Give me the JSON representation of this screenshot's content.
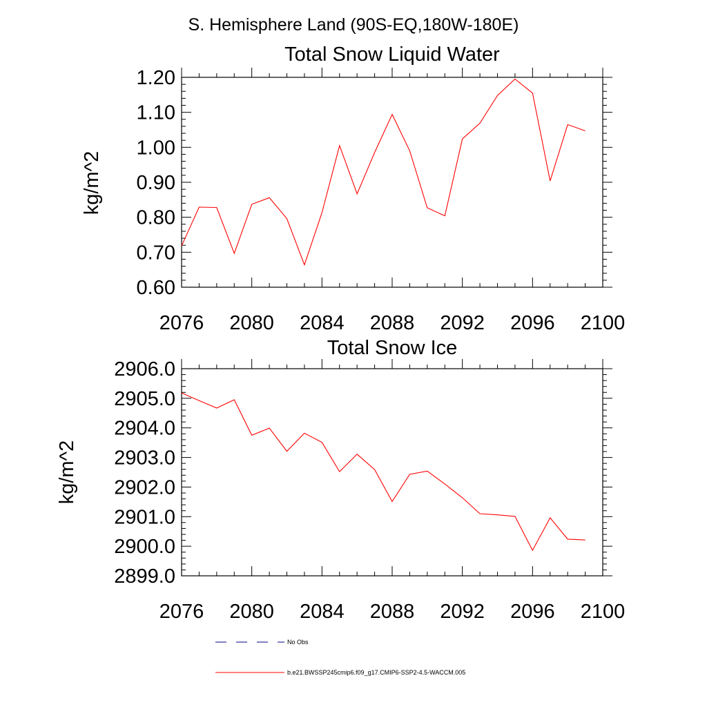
{
  "page_title": "S. Hemisphere Land (90S-EQ,180W-180E)",
  "chart_data": [
    {
      "type": "line",
      "title": "Total Snow Liquid Water",
      "xlabel": "",
      "ylabel": "kg/m^2",
      "xlim": [
        2076,
        2100
      ],
      "ylim": [
        0.6,
        1.2
      ],
      "x_ticks": [
        "2076",
        "2080",
        "2084",
        "2088",
        "2092",
        "2096",
        "2100"
      ],
      "y_ticks": [
        "0.60",
        "0.70",
        "0.80",
        "0.90",
        "1.00",
        "1.10",
        "1.20"
      ],
      "grid": false,
      "x": [
        2076,
        2077,
        2078,
        2079,
        2080,
        2081,
        2082,
        2083,
        2084,
        2085,
        2086,
        2087,
        2088,
        2089,
        2090,
        2091,
        2092,
        2093,
        2094,
        2095,
        2096,
        2097,
        2098,
        2099
      ],
      "series": [
        {
          "name": "b.e21.BWSSP245cmip6.f09_g17.CMIP6-SSP2-4.5-WACCM.005",
          "color": "#ff0000",
          "values": [
            0.718,
            0.829,
            0.828,
            0.697,
            0.837,
            0.856,
            0.796,
            0.664,
            0.813,
            1.005,
            0.867,
            0.985,
            1.094,
            0.99,
            0.827,
            0.804,
            1.024,
            1.069,
            1.148,
            1.195,
            1.155,
            0.904,
            1.065,
            1.047
          ]
        }
      ]
    },
    {
      "type": "line",
      "title": "Total Snow Ice",
      "xlabel": "",
      "ylabel": "kg/m^2",
      "xlim": [
        2076,
        2100
      ],
      "ylim": [
        2899.0,
        2906.0
      ],
      "x_ticks": [
        "2076",
        "2080",
        "2084",
        "2088",
        "2092",
        "2096",
        "2100"
      ],
      "y_ticks": [
        "2899.0",
        "2900.0",
        "2901.0",
        "2902.0",
        "2903.0",
        "2904.0",
        "2905.0",
        "2906.0"
      ],
      "grid": false,
      "x": [
        2076,
        2077,
        2078,
        2079,
        2080,
        2081,
        2082,
        2083,
        2084,
        2085,
        2086,
        2087,
        2088,
        2089,
        2090,
        2091,
        2092,
        2093,
        2094,
        2095,
        2096,
        2097,
        2098,
        2099
      ],
      "series": [
        {
          "name": "b.e21.BWSSP245cmip6.f09_g17.CMIP6-SSP2-4.5-WACCM.005",
          "color": "#ff0000",
          "values": [
            2905.18,
            2904.92,
            2904.67,
            2904.95,
            2903.75,
            2903.99,
            2903.21,
            2903.82,
            2903.51,
            2902.52,
            2903.11,
            2902.59,
            2901.51,
            2902.43,
            2902.54,
            2902.1,
            2901.64,
            2901.1,
            2901.06,
            2901.01,
            2899.86,
            2900.96,
            2900.24,
            2900.21
          ]
        }
      ]
    }
  ],
  "legend": {
    "placement": "bottom",
    "entries": [
      {
        "label": "No Obs",
        "color": "#00008b",
        "style": "dashed"
      },
      {
        "label": "b.e21.BWSSP245cmip6.f09_g17.CMIP6-SSP2-4.5-WACCM.005",
        "color": "#ff0000",
        "style": "solid"
      }
    ]
  }
}
